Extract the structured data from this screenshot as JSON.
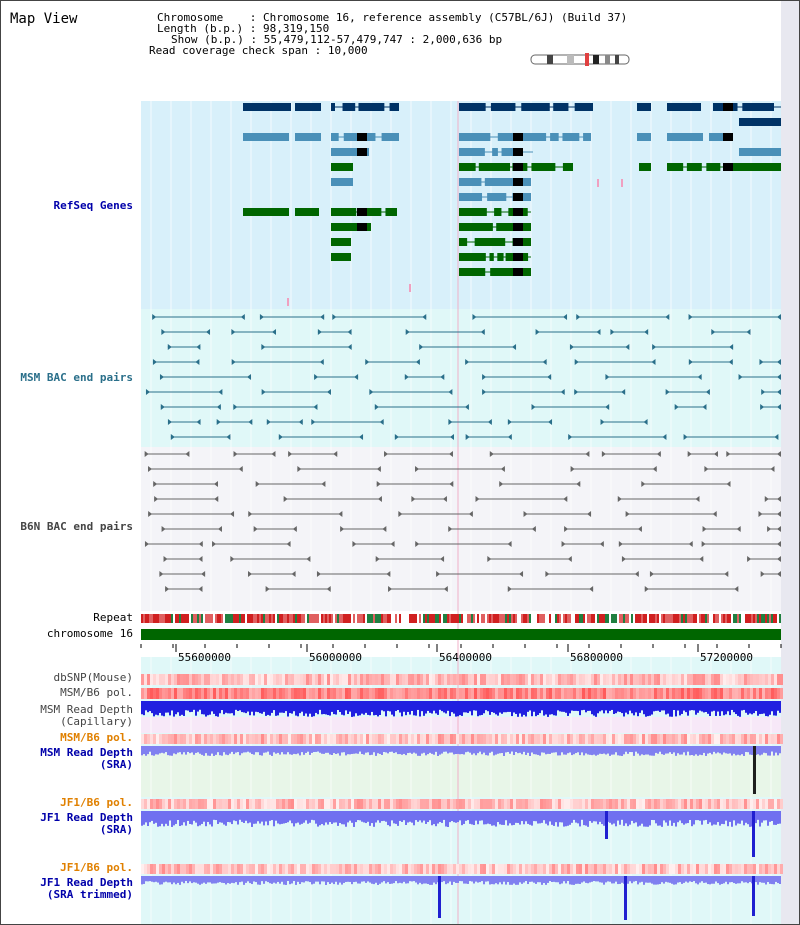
{
  "page": {
    "title": "Map View"
  },
  "info": {
    "chromosome_label": "Chromosome",
    "chromosome_value": "Chromosome 16, reference assembly (C57BL/6J) (Build 37)",
    "length_label": "Length (b.p.)",
    "length_value": "98,319,150",
    "show_label": "Show (b.p.)",
    "show_value": "55,479,112-57,479,747 : 2,000,636 bp",
    "span_label": "Read coverage check span",
    "span_value": "10,000"
  },
  "tracks": {
    "refseq": "RefSeq Genes",
    "msm_bac": "MSM BAC end pairs",
    "b6n_bac": "B6N BAC end pairs",
    "repeat": "Repeat",
    "chromosome": "chromosome 16",
    "dbsnp": "dbSNP(Mouse)",
    "msm_b6_pol_1": "MSM/B6 pol.",
    "msm_depth_cap_1": "MSM Read Depth",
    "msm_depth_cap_2": "(Capillary)",
    "msm_b6_pol_2": "MSM/B6 pol.",
    "msm_depth_sra_1": "MSM Read Depth",
    "msm_depth_sra_2": "(SRA)",
    "jf1_b6_pol_1": "JF1/B6 pol.",
    "jf1_depth_sra_1": "JF1 Read Depth",
    "jf1_depth_sra_2": "(SRA)",
    "jf1_b6_pol_2": "JF1/B6 pol.",
    "jf1_depth_trim_1": "JF1 Read Depth",
    "jf1_depth_trim_2": "(SRA trimmed)"
  },
  "axis": {
    "ticks": [
      "55600000",
      "56000000",
      "56400000",
      "56800000",
      "57200000"
    ]
  },
  "colors": {
    "refseq_bg": "#d8f0fa",
    "msm_bg": "#e0f8f8",
    "b6n_bg": "#f4f4f8",
    "gene_navy": "#003366",
    "gene_blue": "#4a90b8",
    "gene_green": "#006600",
    "msm_line": "#2a6f8a",
    "b6n_line": "#666666",
    "chrom_green": "#006600",
    "label_blue": "#0000aa",
    "label_orange": "#e08000",
    "label_gray": "#444444"
  }
}
